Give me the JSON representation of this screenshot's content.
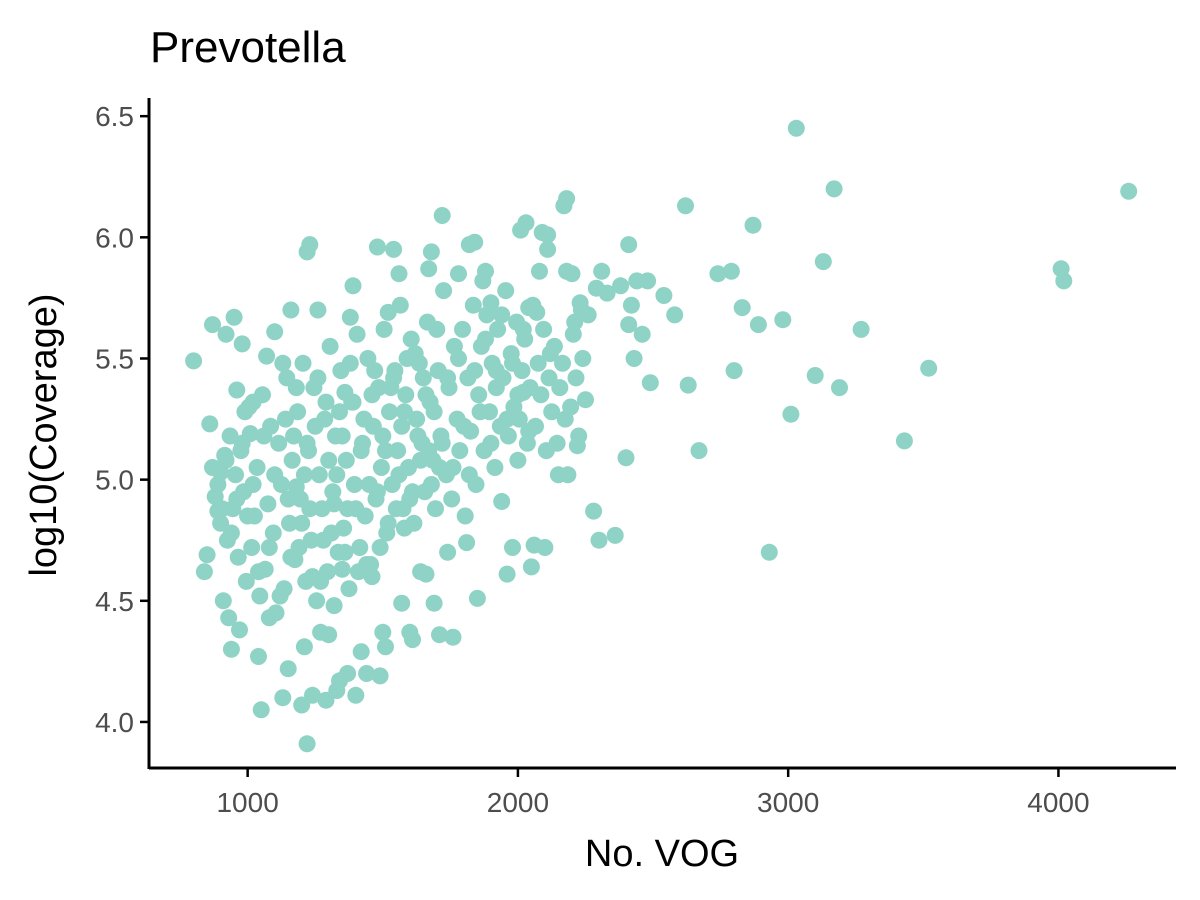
{
  "chart_data": {
    "type": "scatter",
    "title": "Prevotella",
    "xlabel": "No. VOG",
    "ylabel": "log10(Coverage)",
    "xlim": [
      635,
      4435
    ],
    "ylim": [
      3.81,
      6.575
    ],
    "xticks": [
      1000,
      2000,
      3000,
      4000
    ],
    "xtick_labels": [
      "1000",
      "2000",
      "3000",
      "4000"
    ],
    "yticks": [
      4.0,
      4.5,
      5.0,
      5.5,
      6.0,
      6.5
    ],
    "ytick_labels": [
      "4.0",
      "4.5",
      "5.0",
      "5.5",
      "6.0",
      "6.5"
    ],
    "grid": false,
    "legend": "none",
    "point_color": "#8fd3c6",
    "points": [
      [
        800,
        5.49
      ],
      [
        840,
        4.62
      ],
      [
        850,
        4.69
      ],
      [
        860,
        5.23
      ],
      [
        870,
        5.64
      ],
      [
        890,
        4.87
      ],
      [
        900,
        5.03
      ],
      [
        910,
        4.5
      ],
      [
        920,
        5.6
      ],
      [
        930,
        4.43
      ],
      [
        940,
        4.3
      ],
      [
        950,
        5.67
      ],
      [
        960,
        5.37
      ],
      [
        970,
        4.38
      ],
      [
        980,
        5.56
      ],
      [
        990,
        5.28
      ],
      [
        1010,
        5.19
      ],
      [
        1020,
        4.98
      ],
      [
        1040,
        4.27
      ],
      [
        1050,
        4.05
      ],
      [
        1070,
        5.51
      ],
      [
        1080,
        4.43
      ],
      [
        1100,
        5.61
      ],
      [
        1130,
        4.1
      ],
      [
        1150,
        4.22
      ],
      [
        1160,
        5.7
      ],
      [
        1180,
        4.97
      ],
      [
        1200,
        4.07
      ],
      [
        1210,
        4.31
      ],
      [
        1220,
        3.91
      ],
      [
        1220,
        5.94
      ],
      [
        1230,
        5.97
      ],
      [
        1240,
        4.11
      ],
      [
        1260,
        5.7
      ],
      [
        1270,
        4.37
      ],
      [
        1290,
        4.09
      ],
      [
        1300,
        4.36
      ],
      [
        1320,
        4.48
      ],
      [
        1330,
        4.13
      ],
      [
        1340,
        4.17
      ],
      [
        1350,
        4.63
      ],
      [
        1360,
        5.36
      ],
      [
        1370,
        4.2
      ],
      [
        1380,
        5.67
      ],
      [
        1390,
        5.8
      ],
      [
        1400,
        4.11
      ],
      [
        1420,
        4.29
      ],
      [
        1440,
        4.2
      ],
      [
        1460,
        4.6
      ],
      [
        1480,
        5.96
      ],
      [
        1490,
        4.19
      ],
      [
        1500,
        4.37
      ],
      [
        1510,
        4.31
      ],
      [
        1520,
        5.69
      ],
      [
        1540,
        5.95
      ],
      [
        1560,
        5.85
      ],
      [
        1570,
        4.49
      ],
      [
        1580,
        4.8
      ],
      [
        1600,
        4.37
      ],
      [
        1610,
        4.34
      ],
      [
        1640,
        4.62
      ],
      [
        1660,
        4.61
      ],
      [
        1670,
        5.87
      ],
      [
        1680,
        5.94
      ],
      [
        1690,
        4.49
      ],
      [
        1710,
        4.36
      ],
      [
        1720,
        6.09
      ],
      [
        1740,
        4.7
      ],
      [
        1760,
        4.35
      ],
      [
        1780,
        5.85
      ],
      [
        1810,
        4.74
      ],
      [
        1820,
        5.97
      ],
      [
        1840,
        5.98
      ],
      [
        1850,
        4.51
      ],
      [
        1870,
        5.82
      ],
      [
        1880,
        5.86
      ],
      [
        1900,
        5.73
      ],
      [
        1920,
        5.45
      ],
      [
        1940,
        4.91
      ],
      [
        1960,
        4.61
      ],
      [
        1980,
        4.72
      ],
      [
        2000,
        5.08
      ],
      [
        2010,
        6.03
      ],
      [
        2020,
        5.36
      ],
      [
        2030,
        6.06
      ],
      [
        2040,
        5.71
      ],
      [
        2050,
        4.64
      ],
      [
        2060,
        4.73
      ],
      [
        2070,
        5.69
      ],
      [
        2080,
        5.86
      ],
      [
        2090,
        6.02
      ],
      [
        2100,
        4.72
      ],
      [
        2110,
        5.95
      ],
      [
        2110,
        6.01
      ],
      [
        2120,
        5.52
      ],
      [
        2150,
        5.02
      ],
      [
        2170,
        6.13
      ],
      [
        2180,
        6.16
      ],
      [
        2180,
        5.86
      ],
      [
        2200,
        5.85
      ],
      [
        2210,
        5.65
      ],
      [
        2220,
        5.14
      ],
      [
        2230,
        5.73
      ],
      [
        2240,
        5.5
      ],
      [
        2250,
        5.33
      ],
      [
        2260,
        5.68
      ],
      [
        2280,
        4.87
      ],
      [
        2290,
        5.79
      ],
      [
        2300,
        4.75
      ],
      [
        2310,
        5.86
      ],
      [
        2330,
        5.77
      ],
      [
        2360,
        4.77
      ],
      [
        2380,
        5.8
      ],
      [
        2400,
        5.09
      ],
      [
        2410,
        5.64
      ],
      [
        2410,
        5.97
      ],
      [
        2420,
        5.72
      ],
      [
        2430,
        5.5
      ],
      [
        2440,
        5.82
      ],
      [
        2460,
        5.6
      ],
      [
        2480,
        5.82
      ],
      [
        2490,
        5.4
      ],
      [
        2540,
        5.76
      ],
      [
        2580,
        5.68
      ],
      [
        2620,
        6.13
      ],
      [
        2630,
        5.39
      ],
      [
        2670,
        5.12
      ],
      [
        2740,
        5.85
      ],
      [
        2790,
        5.86
      ],
      [
        2800,
        5.45
      ],
      [
        2830,
        5.71
      ],
      [
        2870,
        6.05
      ],
      [
        2890,
        5.64
      ],
      [
        2930,
        4.7
      ],
      [
        2980,
        5.66
      ],
      [
        3010,
        5.27
      ],
      [
        3030,
        6.45
      ],
      [
        3100,
        5.43
      ],
      [
        3130,
        5.9
      ],
      [
        3170,
        6.2
      ],
      [
        3190,
        5.38
      ],
      [
        3270,
        5.62
      ],
      [
        3430,
        5.16
      ],
      [
        3520,
        5.46
      ],
      [
        4010,
        5.87
      ],
      [
        4020,
        5.82
      ],
      [
        4260,
        6.19
      ],
      [
        880,
        4.93
      ],
      [
        900,
        4.82
      ],
      [
        915,
        5.1
      ],
      [
        925,
        4.75
      ],
      [
        935,
        5.18
      ],
      [
        945,
        4.88
      ],
      [
        955,
        5.02
      ],
      [
        965,
        4.68
      ],
      [
        975,
        5.12
      ],
      [
        985,
        4.95
      ],
      [
        995,
        4.58
      ],
      [
        1005,
        5.3
      ],
      [
        1015,
        4.72
      ],
      [
        1025,
        4.85
      ],
      [
        1035,
        5.05
      ],
      [
        1045,
        4.52
      ],
      [
        1055,
        5.35
      ],
      [
        1065,
        4.63
      ],
      [
        1075,
        4.9
      ],
      [
        1085,
        5.22
      ],
      [
        1095,
        4.78
      ],
      [
        1105,
        4.45
      ],
      [
        1115,
        5.15
      ],
      [
        1125,
        4.98
      ],
      [
        1135,
        4.55
      ],
      [
        1145,
        5.42
      ],
      [
        1155,
        4.82
      ],
      [
        1165,
        5.08
      ],
      [
        1175,
        4.67
      ],
      [
        1185,
        5.28
      ],
      [
        1195,
        4.92
      ],
      [
        1205,
        5.48
      ],
      [
        1215,
        4.58
      ],
      [
        1225,
        5.12
      ],
      [
        1235,
        4.75
      ],
      [
        1245,
        5.38
      ],
      [
        1255,
        4.5
      ],
      [
        1265,
        5.02
      ],
      [
        1275,
        4.88
      ],
      [
        1285,
        5.25
      ],
      [
        1295,
        4.62
      ],
      [
        1305,
        5.55
      ],
      [
        1315,
        4.95
      ],
      [
        1325,
        5.18
      ],
      [
        1335,
        4.7
      ],
      [
        1345,
        5.45
      ],
      [
        1355,
        4.8
      ],
      [
        1365,
        5.08
      ],
      [
        1375,
        4.55
      ],
      [
        1385,
        5.32
      ],
      [
        1395,
        4.98
      ],
      [
        1405,
        5.6
      ],
      [
        1415,
        4.72
      ],
      [
        1425,
        5.15
      ],
      [
        1435,
        4.85
      ],
      [
        1445,
        5.5
      ],
      [
        1455,
        4.65
      ],
      [
        1465,
        5.22
      ],
      [
        1475,
        4.92
      ],
      [
        1485,
        5.38
      ],
      [
        1495,
        5.05
      ],
      [
        1505,
        5.62
      ],
      [
        1515,
        4.78
      ],
      [
        1525,
        5.28
      ],
      [
        1535,
        4.98
      ],
      [
        1545,
        5.45
      ],
      [
        1555,
        5.12
      ],
      [
        1565,
        5.72
      ],
      [
        1575,
        4.88
      ],
      [
        1585,
        5.35
      ],
      [
        1595,
        5.05
      ],
      [
        1605,
        5.58
      ],
      [
        1615,
        4.82
      ],
      [
        1625,
        5.25
      ],
      [
        1635,
        5.48
      ],
      [
        1645,
        5.15
      ],
      [
        1655,
        4.95
      ],
      [
        1665,
        5.65
      ],
      [
        1675,
        5.32
      ],
      [
        1685,
        5.08
      ],
      [
        1695,
        4.88
      ],
      [
        1705,
        5.45
      ],
      [
        1715,
        5.18
      ],
      [
        1725,
        5.78
      ],
      [
        1735,
        5.02
      ],
      [
        1745,
        5.38
      ],
      [
        1755,
        4.92
      ],
      [
        1765,
        5.55
      ],
      [
        1775,
        5.25
      ],
      [
        1785,
        5.12
      ],
      [
        1795,
        5.62
      ],
      [
        1805,
        4.85
      ],
      [
        1815,
        5.42
      ],
      [
        1825,
        5.2
      ],
      [
        1835,
        5.72
      ],
      [
        1845,
        4.98
      ],
      [
        1855,
        5.35
      ],
      [
        1865,
        5.55
      ],
      [
        1875,
        5.12
      ],
      [
        1885,
        5.68
      ],
      [
        1895,
        5.28
      ],
      [
        1905,
        5.48
      ],
      [
        1915,
        5.05
      ],
      [
        1925,
        5.62
      ],
      [
        1935,
        5.22
      ],
      [
        1945,
        5.42
      ],
      [
        1955,
        5.78
      ],
      [
        1965,
        5.18
      ],
      [
        1975,
        5.52
      ],
      [
        1985,
        5.3
      ],
      [
        1995,
        5.65
      ],
      [
        2005,
        5.25
      ],
      [
        2015,
        5.45
      ],
      [
        2025,
        5.58
      ],
      [
        2035,
        5.15
      ],
      [
        2045,
        5.38
      ],
      [
        2055,
        5.72
      ],
      [
        2065,
        5.22
      ],
      [
        2075,
        5.48
      ],
      [
        2085,
        5.35
      ],
      [
        2095,
        5.62
      ],
      [
        2105,
        5.12
      ],
      [
        2115,
        5.42
      ],
      [
        2125,
        5.28
      ],
      [
        2135,
        5.55
      ],
      [
        2145,
        5.15
      ],
      [
        2155,
        5.38
      ],
      [
        2165,
        5.48
      ],
      [
        2175,
        5.25
      ],
      [
        2185,
        5.02
      ],
      [
        2195,
        5.3
      ],
      [
        2205,
        5.6
      ],
      [
        2215,
        5.42
      ],
      [
        2225,
        5.18
      ],
      [
        2235,
        5.7
      ],
      [
        870,
        5.05
      ],
      [
        890,
        4.98
      ],
      [
        905,
        4.88
      ],
      [
        920,
        5.08
      ],
      [
        940,
        4.78
      ],
      [
        960,
        4.92
      ],
      [
        980,
        5.15
      ],
      [
        1000,
        4.85
      ],
      [
        1020,
        5.32
      ],
      [
        1040,
        4.62
      ],
      [
        1060,
        5.18
      ],
      [
        1080,
        4.72
      ],
      [
        1100,
        5.02
      ],
      [
        1120,
        4.52
      ],
      [
        1140,
        5.25
      ],
      [
        1160,
        4.68
      ],
      [
        1180,
        5.38
      ],
      [
        1200,
        4.82
      ],
      [
        1220,
        5.15
      ],
      [
        1240,
        4.6
      ],
      [
        1260,
        5.42
      ],
      [
        1280,
        4.75
      ],
      [
        1300,
        5.08
      ],
      [
        1320,
        4.9
      ],
      [
        1340,
        5.28
      ],
      [
        1360,
        4.7
      ],
      [
        1380,
        5.48
      ],
      [
        1400,
        4.88
      ],
      [
        1420,
        5.12
      ],
      [
        1440,
        4.65
      ],
      [
        1460,
        5.35
      ],
      [
        1480,
        4.95
      ],
      [
        1500,
        5.18
      ],
      [
        1520,
        4.82
      ],
      [
        1540,
        5.42
      ],
      [
        1560,
        5.02
      ],
      [
        1580,
        5.28
      ],
      [
        1600,
        4.92
      ],
      [
        1620,
        5.52
      ],
      [
        1640,
        5.08
      ],
      [
        1660,
        5.35
      ],
      [
        1680,
        4.98
      ],
      [
        1700,
        5.62
      ],
      [
        1720,
        5.15
      ],
      [
        1740,
        5.42
      ],
      [
        1760,
        5.05
      ],
      [
        1780,
        5.5
      ],
      [
        1800,
        5.22
      ],
      [
        1820,
        5.02
      ],
      [
        1840,
        5.45
      ],
      [
        1860,
        5.28
      ],
      [
        1880,
        5.58
      ],
      [
        1900,
        5.15
      ],
      [
        1920,
        5.38
      ],
      [
        1940,
        5.68
      ],
      [
        1960,
        5.25
      ],
      [
        1980,
        5.48
      ],
      [
        2000,
        5.35
      ],
      [
        2020,
        5.62
      ],
      [
        2040,
        5.2
      ],
      [
        1130,
        5.48
      ],
      [
        1150,
        4.92
      ],
      [
        1170,
        5.18
      ],
      [
        1190,
        4.72
      ],
      [
        1210,
        5.02
      ],
      [
        1230,
        4.88
      ],
      [
        1250,
        5.22
      ],
      [
        1270,
        4.58
      ],
      [
        1290,
        5.32
      ],
      [
        1310,
        4.78
      ],
      [
        1330,
        5.02
      ],
      [
        1350,
        5.18
      ],
      [
        1370,
        4.88
      ],
      [
        1390,
        5.32
      ],
      [
        1410,
        4.62
      ],
      [
        1430,
        5.25
      ],
      [
        1450,
        4.98
      ],
      [
        1470,
        5.45
      ],
      [
        1490,
        4.72
      ],
      [
        1510,
        5.12
      ],
      [
        1530,
        5.38
      ],
      [
        1550,
        4.88
      ],
      [
        1570,
        5.22
      ],
      [
        1590,
        5.5
      ],
      [
        1610,
        4.95
      ],
      [
        1630,
        5.18
      ],
      [
        1650,
        5.42
      ],
      [
        1670,
        5.12
      ],
      [
        1690,
        5.28
      ],
      [
        1710,
        5.05
      ]
    ]
  }
}
